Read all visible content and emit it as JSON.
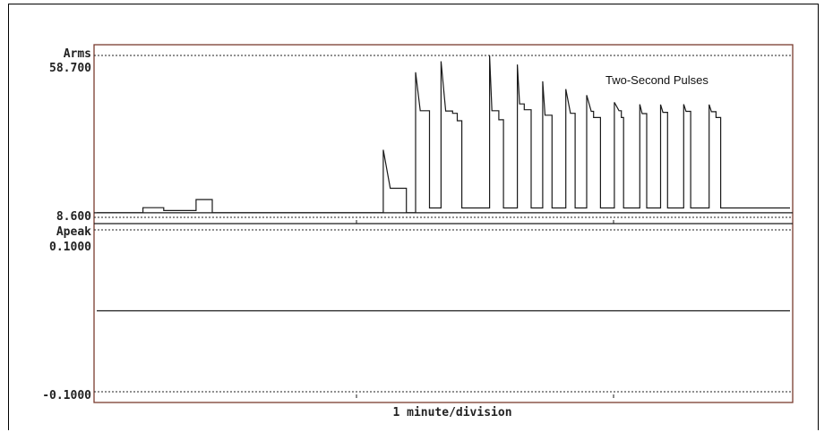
{
  "chart_data": [
    {
      "type": "line",
      "ylabel": "Arms",
      "ytick_labels": [
        "58.700",
        "8.600"
      ],
      "ylim": [
        8.6,
        58.7
      ],
      "annotation": "Two-Second Pulses",
      "x_unit_minutes_per_division": 1,
      "xlim": [
        0,
        3
      ],
      "baseline_value": 10.0,
      "series": [
        {
          "points": [
            [
              0.0,
              10.0
            ],
            [
              0.2,
              10.0
            ],
            [
              0.2,
              11.6
            ],
            [
              0.29,
              11.6
            ],
            [
              0.29,
              10.7
            ],
            [
              0.43,
              10.7
            ],
            [
              0.43,
              14.1
            ],
            [
              0.5,
              14.1
            ],
            [
              0.5,
              10.0
            ],
            [
              1.24,
              10.0
            ],
            [
              1.24,
              29.5
            ],
            [
              1.27,
              17.6
            ],
            [
              1.34,
              17.6
            ],
            [
              1.34,
              10.0
            ],
            [
              1.38,
              10.0
            ],
            [
              1.38,
              53.5
            ],
            [
              1.4,
              41.6
            ],
            [
              1.44,
              41.6
            ],
            [
              1.44,
              11.5
            ],
            [
              1.49,
              11.5
            ],
            [
              1.49,
              56.9
            ],
            [
              1.51,
              41.5
            ],
            [
              1.54,
              41.5
            ],
            [
              1.54,
              40.8
            ],
            [
              1.56,
              40.8
            ],
            [
              1.56,
              38.5
            ],
            [
              1.58,
              38.5
            ],
            [
              1.58,
              11.5
            ],
            [
              1.7,
              11.5
            ],
            [
              1.7,
              58.7
            ],
            [
              1.71,
              41.6
            ],
            [
              1.74,
              41.6
            ],
            [
              1.74,
              38.8
            ],
            [
              1.76,
              38.8
            ],
            [
              1.76,
              11.5
            ],
            [
              1.82,
              11.5
            ],
            [
              1.82,
              55.9
            ],
            [
              1.83,
              43.7
            ],
            [
              1.85,
              43.7
            ],
            [
              1.85,
              41.9
            ],
            [
              1.88,
              41.9
            ],
            [
              1.88,
              11.5
            ],
            [
              1.93,
              11.5
            ],
            [
              1.93,
              50.7
            ],
            [
              1.94,
              40.2
            ],
            [
              1.97,
              40.2
            ],
            [
              1.97,
              11.5
            ],
            [
              2.03,
              11.5
            ],
            [
              2.03,
              48.3
            ],
            [
              2.05,
              40.8
            ],
            [
              2.07,
              40.8
            ],
            [
              2.07,
              11.5
            ],
            [
              2.12,
              11.5
            ],
            [
              2.12,
              46.4
            ],
            [
              2.14,
              41.4
            ],
            [
              2.15,
              41.4
            ],
            [
              2.15,
              39.5
            ],
            [
              2.18,
              39.5
            ],
            [
              2.18,
              11.5
            ],
            [
              2.24,
              11.5
            ],
            [
              2.24,
              44.2
            ],
            [
              2.26,
              41.6
            ],
            [
              2.27,
              41.6
            ],
            [
              2.27,
              39.5
            ],
            [
              2.28,
              39.5
            ],
            [
              2.28,
              11.5
            ],
            [
              2.35,
              11.5
            ],
            [
              2.35,
              43.6
            ],
            [
              2.36,
              40.7
            ],
            [
              2.38,
              40.7
            ],
            [
              2.38,
              11.5
            ],
            [
              2.44,
              11.5
            ],
            [
              2.44,
              43.5
            ],
            [
              2.45,
              41.1
            ],
            [
              2.47,
              41.1
            ],
            [
              2.47,
              11.5
            ],
            [
              2.54,
              11.5
            ],
            [
              2.54,
              43.6
            ],
            [
              2.55,
              41.4
            ],
            [
              2.57,
              41.4
            ],
            [
              2.57,
              11.5
            ],
            [
              2.65,
              11.5
            ],
            [
              2.65,
              43.5
            ],
            [
              2.66,
              41.3
            ],
            [
              2.68,
              41.3
            ],
            [
              2.68,
              39.5
            ],
            [
              2.7,
              39.5
            ],
            [
              2.7,
              11.5
            ],
            [
              3.0,
              11.5
            ]
          ]
        }
      ]
    },
    {
      "type": "line",
      "ylabel": "Apeak",
      "ytick_labels": [
        "0.1000",
        "-0.1000"
      ],
      "ylim": [
        -0.1,
        0.1
      ],
      "xlabel": "1 minute/division",
      "xlim": [
        0,
        3
      ],
      "series": [
        {
          "points": [
            [
              0.0,
              0.0
            ],
            [
              3.0,
              0.0
            ]
          ]
        }
      ]
    }
  ],
  "colors": {
    "trace": "#1a1a1a",
    "border": "#7a3b2e",
    "dotted": "#222222"
  }
}
